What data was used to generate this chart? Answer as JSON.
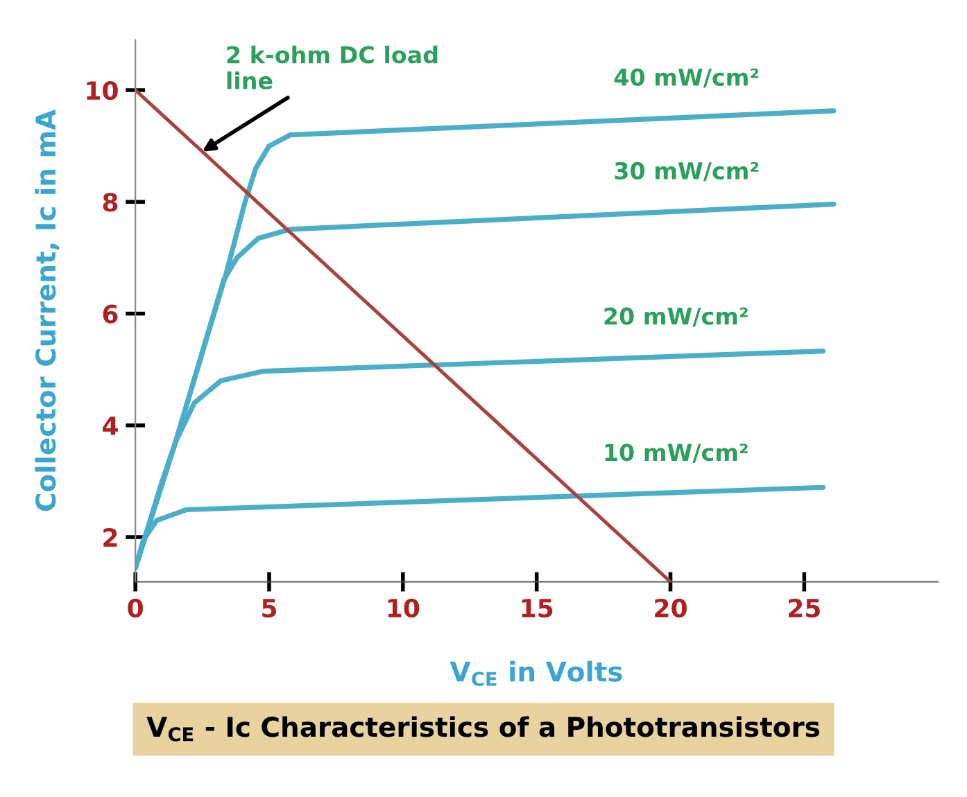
{
  "chart_data": {
    "type": "line",
    "title": "V$_{CE}$ - Ic Characteristics of a Phototransistors",
    "xlabel": "V$_{CE}$ in Volts",
    "ylabel": "Collector Current, Ic in mA",
    "xlim": [
      0,
      30
    ],
    "ylim": [
      1.2,
      10.9
    ],
    "xticks": [
      0,
      5,
      10,
      15,
      20,
      25
    ],
    "yticks": [
      2,
      4,
      6,
      8,
      10
    ],
    "grid": false,
    "legend": false,
    "line_style": "solid",
    "marker": "none",
    "series": [
      {
        "name": "10 mW/cm²",
        "color": "#4aaec8",
        "x": [
          0,
          0.3,
          0.8,
          1.9,
          25.7
        ],
        "values": [
          1.45,
          1.95,
          2.3,
          2.49,
          2.89
        ]
      },
      {
        "name": "20 mW/cm²",
        "color": "#4aaec8",
        "x": [
          0,
          1.0,
          1.5,
          2.2,
          3.2,
          4.8,
          25.7
        ],
        "values": [
          1.45,
          3.0,
          3.7,
          4.4,
          4.8,
          4.97,
          5.33
        ]
      },
      {
        "name": "30 mW/cm²",
        "color": "#4aaec8",
        "x": [
          0,
          1.5,
          3.3,
          3.8,
          4.6,
          5.8,
          26.1
        ],
        "values": [
          1.45,
          3.7,
          6.6,
          7.0,
          7.35,
          7.51,
          7.96
        ]
      },
      {
        "name": "40 mW/cm²",
        "color": "#4aaec8",
        "x": [
          0,
          1.5,
          3.4,
          4.1,
          4.5,
          5.0,
          5.8,
          26.1
        ],
        "values": [
          1.45,
          3.7,
          6.73,
          8.0,
          8.6,
          9.0,
          9.2,
          9.63
        ]
      },
      {
        "color": "#a8423f",
        "x": [
          0,
          20
        ],
        "values": [
          10,
          1.2
        ]
      }
    ],
    "annotations": [
      {
        "text": "2 k-ohm DC load\nline",
        "x": 2.5,
        "y": 8.9
      }
    ]
  }
}
